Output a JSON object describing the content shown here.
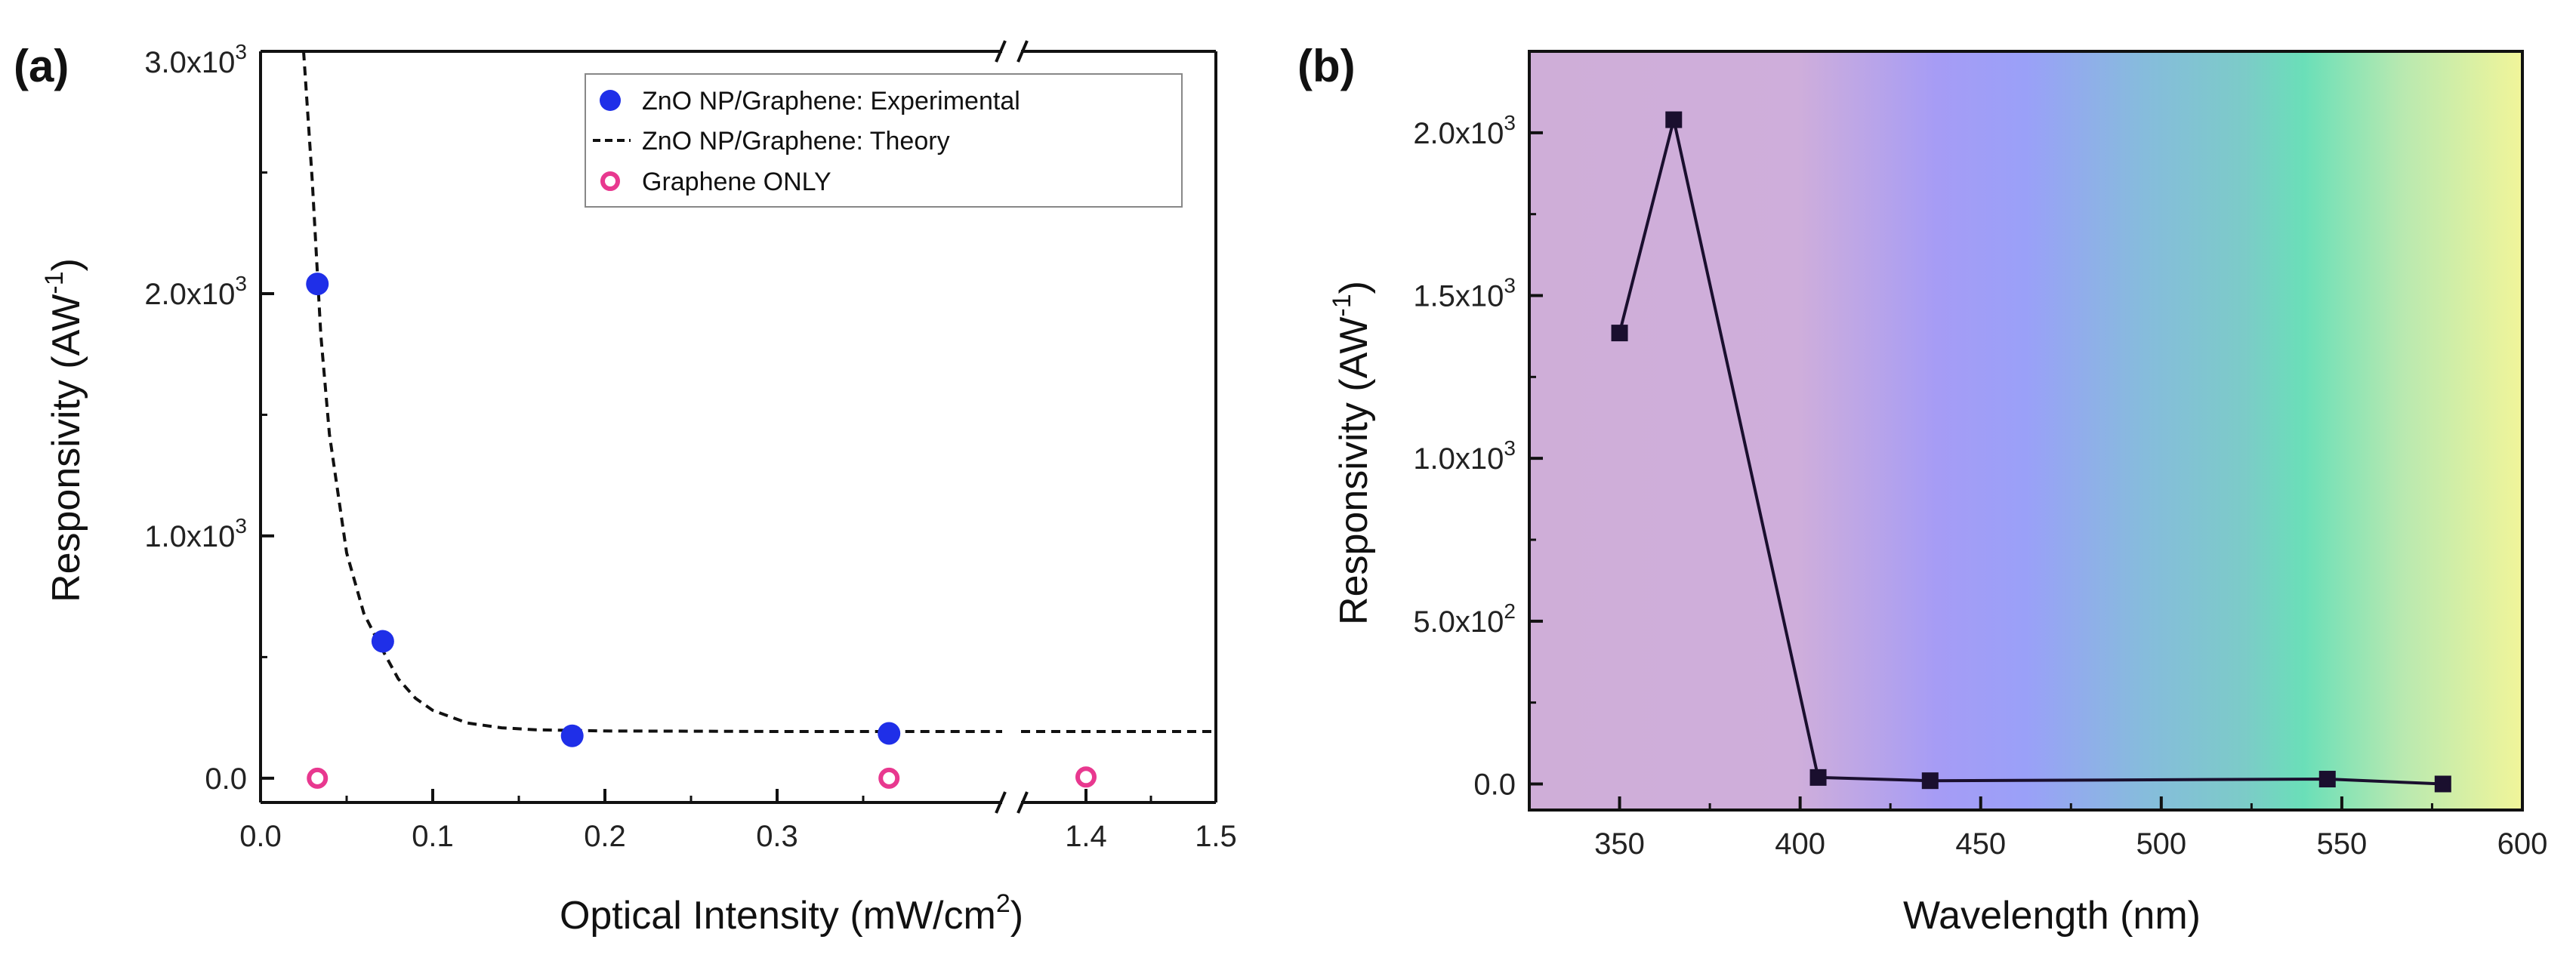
{
  "chart_data": [
    {
      "type": "scatter",
      "panel_label": "(a)",
      "xlabel": "Optical Intensity (mW/cm",
      "xlabel_sup": "2",
      "xlabel_end": ")",
      "ylabel": "Responsivity (AW",
      "ylabel_sup": "-1",
      "ylabel_end": ")",
      "xlim": [
        0.0,
        1.5
      ],
      "x_break": {
        "from": 0.4,
        "to": 1.35
      },
      "ylim": [
        -100,
        3000
      ],
      "x_ticks": [
        "0.0",
        "0.1",
        "0.2",
        "0.3",
        "1.4",
        "1.5"
      ],
      "y_ticks": [
        {
          "base": "0.0",
          "exp": ""
        },
        {
          "base": "1.0x10",
          "exp": "3"
        },
        {
          "base": "2.0x10",
          "exp": "3"
        },
        {
          "base": "3.0x10",
          "exp": "3"
        }
      ],
      "legend_position": "top-right",
      "series": [
        {
          "name": "ZnO NP/Graphene: Experimental",
          "style": "filled-circle",
          "color": "#1f2fe8",
          "x": [
            0.033,
            0.071,
            0.181,
            0.365
          ],
          "y": [
            2040,
            565,
            175,
            185
          ]
        },
        {
          "name": "ZnO NP/Graphene: Theory",
          "style": "dashed-line",
          "color": "#111111",
          "x": [
            0.025,
            0.03,
            0.035,
            0.04,
            0.05,
            0.06,
            0.07,
            0.08,
            0.09,
            0.1,
            0.12,
            0.14,
            0.16,
            0.2,
            0.25,
            0.3,
            0.35,
            0.4,
            1.35,
            1.5
          ],
          "y": [
            3000,
            2470,
            1830,
            1420,
            930,
            680,
            540,
            410,
            330,
            280,
            228,
            208,
            200,
            195,
            194,
            193,
            193,
            193,
            193,
            193
          ]
        },
        {
          "name": "Graphene ONLY",
          "style": "open-circle",
          "color": "#e8388f",
          "x": [
            0.033,
            0.365,
            1.4
          ],
          "y": [
            0,
            0,
            5
          ]
        }
      ]
    },
    {
      "type": "line",
      "panel_label": "(b)",
      "xlabel": "Wavelength (nm)",
      "ylabel": "Responsivity (AW",
      "ylabel_sup": "-1",
      "ylabel_end": ")",
      "xlim": [
        325,
        600
      ],
      "ylim": [
        -80,
        2250
      ],
      "x_ticks": [
        "350",
        "400",
        "450",
        "500",
        "550",
        "600"
      ],
      "y_ticks": [
        {
          "base": "0.0",
          "exp": ""
        },
        {
          "base": "5.0x10",
          "exp": "2"
        },
        {
          "base": "1.0x10",
          "exp": "3"
        },
        {
          "base": "1.5x10",
          "exp": "3"
        },
        {
          "base": "2.0x10",
          "exp": "3"
        }
      ],
      "background_gradient": "visible spectrum (violet to yellow)",
      "series": [
        {
          "name": "Responsivity",
          "style": "square-markers-line",
          "color": "#1a0f2e",
          "x": [
            350,
            365,
            405,
            436,
            546,
            578
          ],
          "y": [
            1385,
            2040,
            20,
            10,
            15,
            0
          ]
        }
      ]
    }
  ]
}
